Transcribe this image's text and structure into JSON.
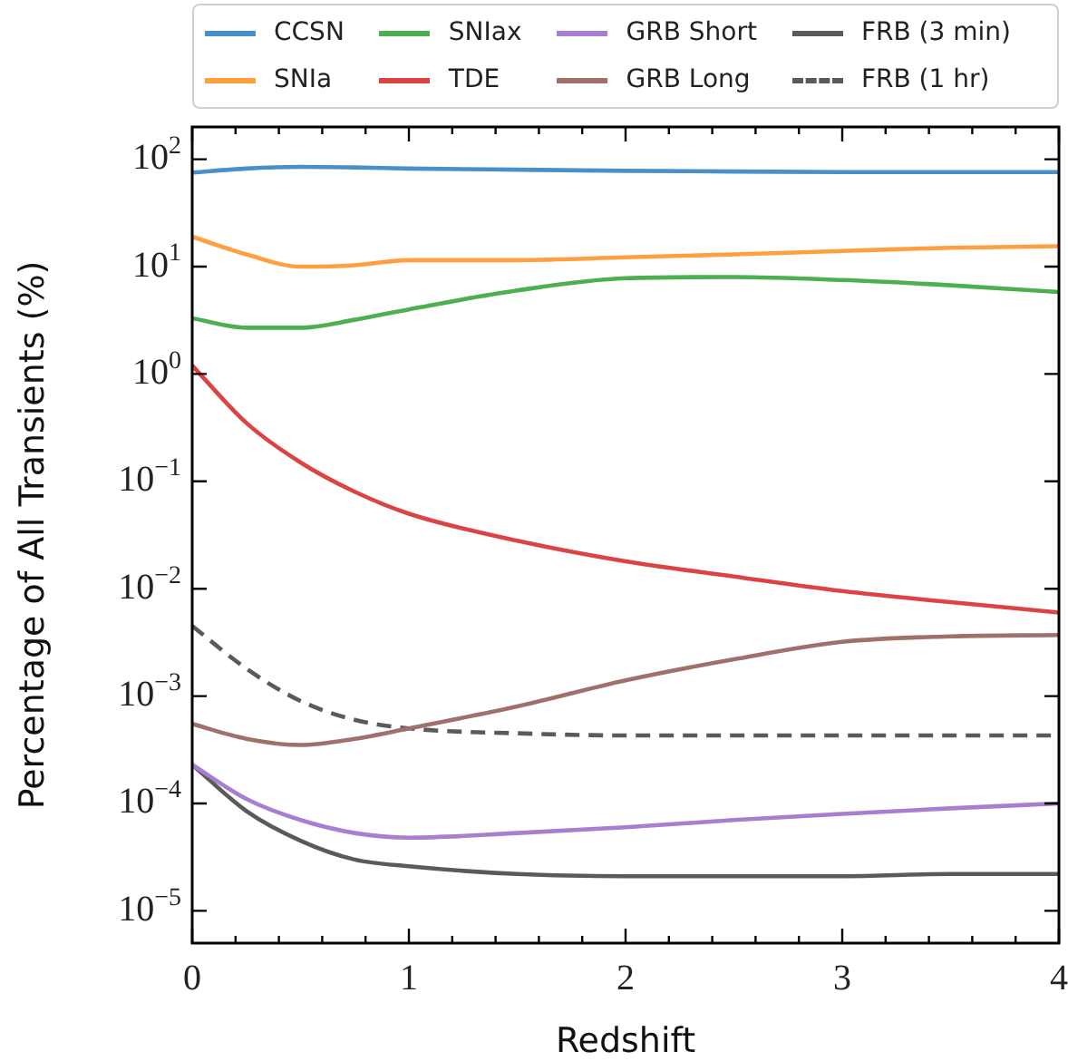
{
  "chart_data": {
    "type": "line",
    "xlabel": "Redshift",
    "ylabel": "Percentage of All Transients (%)",
    "log": "y",
    "legend": "top",
    "xlim": [
      0,
      4
    ],
    "ylim": [
      5e-06,
      200
    ],
    "xticks": [
      0,
      {
        "value": 0.2,
        "label": null
      },
      {
        "value": 0.4,
        "label": null
      },
      {
        "value": 0.6,
        "label": null
      },
      {
        "value": 0.8,
        "label": null
      },
      1,
      {
        "value": 1.2,
        "label": null
      },
      {
        "value": 1.4,
        "label": null
      },
      {
        "value": 1.6,
        "label": null
      },
      {
        "value": 1.8,
        "label": null
      },
      2,
      {
        "value": 2.2,
        "label": null
      },
      {
        "value": 2.4,
        "label": null
      },
      {
        "value": 2.6,
        "label": null
      },
      {
        "value": 2.8,
        "label": null
      },
      3,
      {
        "value": 3.2,
        "label": null
      },
      {
        "value": 3.4,
        "label": null
      },
      {
        "value": 3.6,
        "label": null
      },
      {
        "value": 3.8,
        "label": null
      },
      4
    ],
    "yticks": [
      {
        "value": 1e-05,
        "label": "10$^{−5}$"
      },
      {
        "value": 0.0001,
        "label": "10$^{−4}$"
      },
      {
        "value": 0.001,
        "label": "10$^{−3}$"
      },
      {
        "value": 0.01,
        "label": "10$^{−2}$"
      },
      {
        "value": 0.1,
        "label": "10$^{−1}$"
      },
      {
        "value": 1,
        "label": "10$^{0}$"
      },
      {
        "value": 10,
        "label": "10$^{1}$"
      },
      {
        "value": 100,
        "label": "10$^{2}$"
      }
    ],
    "x": [
      0,
      0.25,
      0.5,
      0.75,
      1,
      1.5,
      2,
      2.5,
      3,
      3.5,
      4
    ],
    "series": [
      {
        "name": "CCSN",
        "color": "#4a90c8",
        "values": [
          75,
          82,
          85,
          84,
          82,
          80,
          78,
          77,
          76,
          76,
          76
        ]
      },
      {
        "name": "SNIa",
        "color": "#ffa040",
        "values": [
          19,
          13,
          10,
          10.3,
          11.5,
          11.5,
          12.2,
          13,
          14,
          15,
          15.5
        ]
      },
      {
        "name": "SNIax",
        "color": "#4caf50",
        "values": [
          3.3,
          2.7,
          2.7,
          3.2,
          4,
          6,
          7.8,
          8,
          7.5,
          6.7,
          5.8
        ]
      },
      {
        "name": "TDE",
        "color": "#dc4444",
        "values": [
          1.2,
          0.35,
          0.15,
          0.08,
          0.05,
          0.028,
          0.018,
          0.013,
          0.0095,
          0.0075,
          0.006
        ]
      },
      {
        "name": "GRB Short",
        "color": "#a77ed0",
        "values": [
          0.00023,
          0.00011,
          7e-05,
          5.3e-05,
          4.8e-05,
          5.3e-05,
          6e-05,
          7e-05,
          8e-05,
          9e-05,
          0.0001
        ]
      },
      {
        "name": "GRB Long",
        "color": "#a0706a",
        "values": [
          0.00055,
          0.0004,
          0.00035,
          0.0004,
          0.0005,
          0.0008,
          0.0014,
          0.0022,
          0.0032,
          0.0036,
          0.0037
        ]
      },
      {
        "name": "FRB (3 min)",
        "color": "#5a5a5a",
        "values": [
          0.00023,
          8.5e-05,
          4.5e-05,
          3e-05,
          2.6e-05,
          2.2e-05,
          2.1e-05,
          2.1e-05,
          2.1e-05,
          2.2e-05,
          2.2e-05
        ]
      },
      {
        "name": "FRB (1 hr)",
        "color": "#5a5a5a",
        "line_style": "dashed",
        "values": [
          0.0045,
          0.0018,
          0.0009,
          0.0006,
          0.0005,
          0.00045,
          0.00043,
          0.00043,
          0.00043,
          0.00043,
          0.00043
        ]
      }
    ]
  }
}
